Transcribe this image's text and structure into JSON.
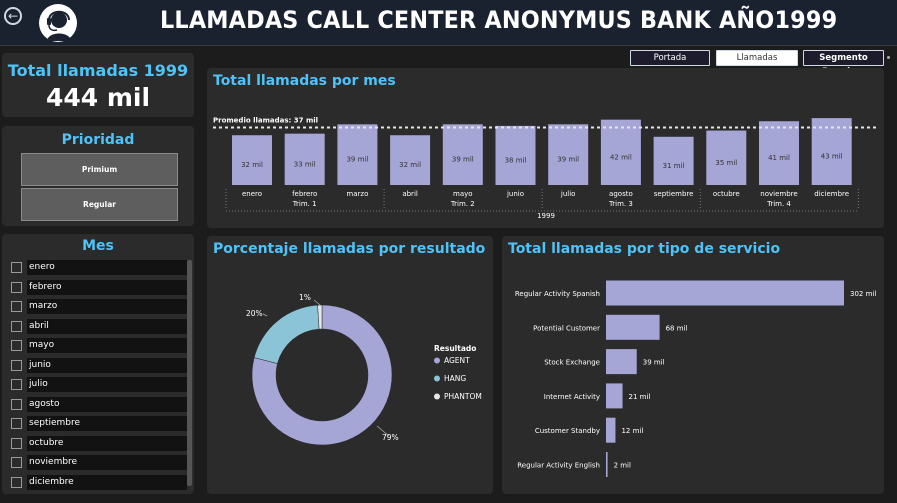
{
  "header": {
    "title": "LLAMADAS CALL CENTER ANONYMUS BANK AÑO1999"
  },
  "nav": {
    "portada": "Portada",
    "llamadas": "Llamadas",
    "segmento": "Segmento Premium"
  },
  "kpi": {
    "label": "Total llamadas 1999",
    "value": "444 mil"
  },
  "prioridad": {
    "label": "Prioridad",
    "options": [
      "Primium",
      "Regular"
    ]
  },
  "mes_filter": {
    "label": "Mes",
    "items": [
      "enero",
      "febrero",
      "marzo",
      "abril",
      "mayo",
      "junio",
      "julio",
      "agosto",
      "septiembre",
      "octubre",
      "noviembre",
      "diciembre"
    ]
  },
  "colors": {
    "accent": "#4fc3f7",
    "bar": "#a5a5d6",
    "agent": "#a5a5d6",
    "hang": "#8bc4d6",
    "phantom": "#e6e6e6",
    "card": "#2b2b2b",
    "background": "#1c1c1c"
  },
  "chart_data": [
    {
      "type": "bar",
      "title": "Total llamadas por mes",
      "categories": [
        "enero",
        "febrero",
        "marzo",
        "abril",
        "mayo",
        "junio",
        "julio",
        "agosto",
        "septiembre",
        "octubre",
        "noviembre",
        "diciembre"
      ],
      "values": [
        32,
        33,
        39,
        32,
        39,
        38,
        39,
        42,
        31,
        35,
        41,
        43
      ],
      "value_labels": [
        "32 mil",
        "33 mil",
        "39 mil",
        "32 mil",
        "39 mil",
        "38 mil",
        "39 mil",
        "42 mil",
        "31 mil",
        "35 mil",
        "41 mil",
        "43 mil"
      ],
      "quarters": [
        "Trim. 1",
        "Trim. 2",
        "Trim. 3",
        "Trim. 4"
      ],
      "year": "1999",
      "average_line": {
        "label": "Promedio llamadas: 37 mil",
        "value": 37
      },
      "ylim": [
        0,
        45
      ]
    },
    {
      "type": "pie",
      "title": "Porcentaje llamadas por resultado",
      "legend_title": "Resultado",
      "legend_position": "right",
      "categories": [
        "AGENT",
        "HANG",
        "PHANTOM"
      ],
      "values": [
        79,
        20,
        1
      ],
      "value_labels": [
        "79%",
        "20%",
        "1%"
      ]
    },
    {
      "type": "bar",
      "orientation": "horizontal",
      "title": "Total llamadas por tipo de servicio",
      "categories": [
        "Regular Activity Spanish",
        "Potential Customer",
        "Stock Exchange",
        "Internet Activity",
        "Customer Standby",
        "Regular Activity English"
      ],
      "values": [
        302,
        68,
        39,
        21,
        12,
        2
      ],
      "value_labels": [
        "302 mil",
        "68 mil",
        "39 mil",
        "21 mil",
        "12 mil",
        "2 mil"
      ]
    }
  ]
}
